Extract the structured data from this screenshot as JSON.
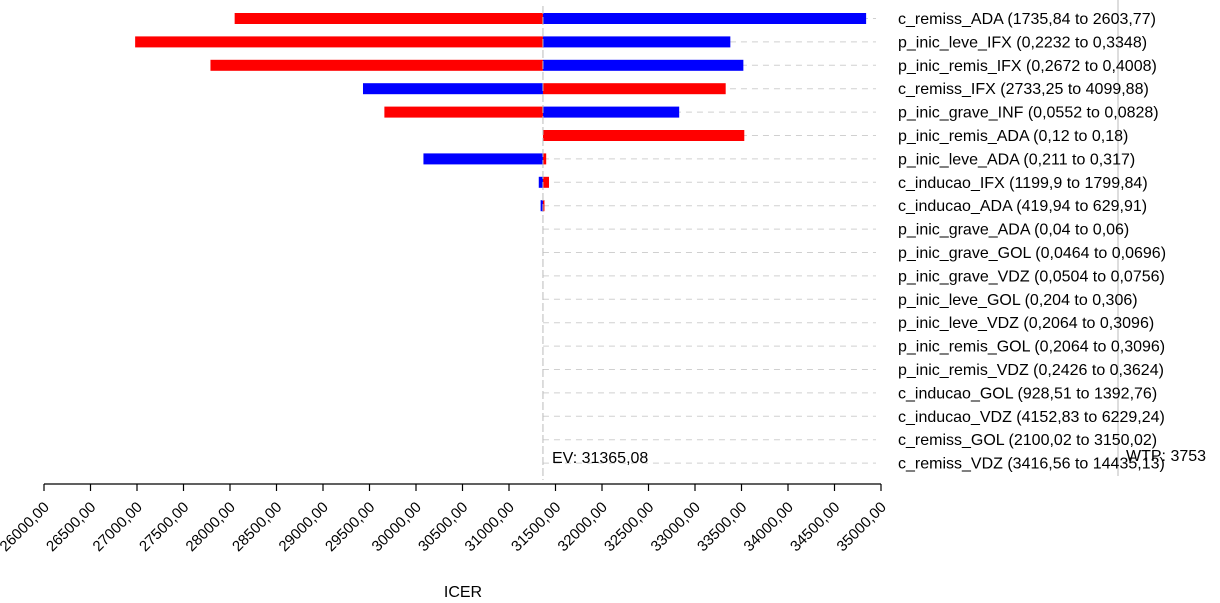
{
  "chart_data": {
    "type": "tornado",
    "xlabel": "ICER",
    "xlim": [
      26000,
      35000
    ],
    "xticks": [
      26000,
      26500,
      27000,
      27500,
      28000,
      28500,
      29000,
      29500,
      30000,
      30500,
      31000,
      31500,
      32000,
      32500,
      33000,
      33500,
      34000,
      34500,
      35000
    ],
    "tick_labels": [
      "26000,00",
      "26500,00",
      "27000,00",
      "27500,00",
      "28000,00",
      "28500,00",
      "29000,00",
      "29500,00",
      "30000,00",
      "30500,00",
      "31000,00",
      "31500,00",
      "32000,00",
      "32500,00",
      "33000,00",
      "33500,00",
      "34000,00",
      "34500,00",
      "35000,00"
    ],
    "ev": 31365.08,
    "ev_label": "EV: 31365,08",
    "wtp_label": "WTP: 3753",
    "grid": "dashed-row-guides",
    "colors": {
      "red": "#ff0000",
      "blue": "#0000ff"
    },
    "rows": [
      {
        "label": "c_remiss_ADA (1735,84 to 2603,77)",
        "red": 28050,
        "blue": 34840
      },
      {
        "label": "p_inic_leve_IFX (0,2232 to 0,3348)",
        "red": 26980,
        "blue": 33380
      },
      {
        "label": "p_inic_remis_IFX (0,2672 to 0,4008)",
        "red": 27790,
        "blue": 33520
      },
      {
        "label": "c_remiss_IFX (2733,25 to 4099,88)",
        "red": 33330,
        "blue": 29430
      },
      {
        "label": "p_inic_grave_INF (0,0552 to 0,0828)",
        "red": 29660,
        "blue": 32830
      },
      {
        "label": "p_inic_remis_ADA (0,12 to 0,18)",
        "red": 33530,
        "blue": 31365.08
      },
      {
        "label": "p_inic_leve_ADA (0,211 to 0,317)",
        "red": 31400,
        "blue": 30080
      },
      {
        "label": "c_inducao_IFX (1199,9 to 1799,84)",
        "red": 31430,
        "blue": 31320
      },
      {
        "label": "c_inducao_ADA (419,94 to 629,91)",
        "red": 31370,
        "blue": 31340
      },
      {
        "label": "p_inic_grave_ADA (0,04 to 0,06)",
        "red": 31365.08,
        "blue": 31365.08
      },
      {
        "label": "p_inic_grave_GOL (0,0464 to 0,0696)",
        "red": 31365.08,
        "blue": 31365.08
      },
      {
        "label": "p_inic_grave_VDZ (0,0504 to 0,0756)",
        "red": 31365.08,
        "blue": 31365.08
      },
      {
        "label": "p_inic_leve_GOL (0,204 to 0,306)",
        "red": 31365.08,
        "blue": 31365.08
      },
      {
        "label": "p_inic_leve_VDZ (0,2064 to 0,3096)",
        "red": 31365.08,
        "blue": 31365.08
      },
      {
        "label": "p_inic_remis_GOL (0,2064 to 0,3096)",
        "red": 31365.08,
        "blue": 31365.08
      },
      {
        "label": "p_inic_remis_VDZ (0,2426 to 0,3624)",
        "red": 31365.08,
        "blue": 31365.08
      },
      {
        "label": "c_inducao_GOL (928,51 to 1392,76)",
        "red": 31365.08,
        "blue": 31365.08
      },
      {
        "label": "c_inducao_VDZ (4152,83 to 6229,24)",
        "red": 31365.08,
        "blue": 31365.08
      },
      {
        "label": "c_remiss_GOL (2100,02 to 3150,02)",
        "red": 31365.08,
        "blue": 31365.08
      },
      {
        "label": "c_remiss_VDZ (3416,56 to 14435,13)",
        "red": 31365.08,
        "blue": 31365.08
      }
    ]
  }
}
